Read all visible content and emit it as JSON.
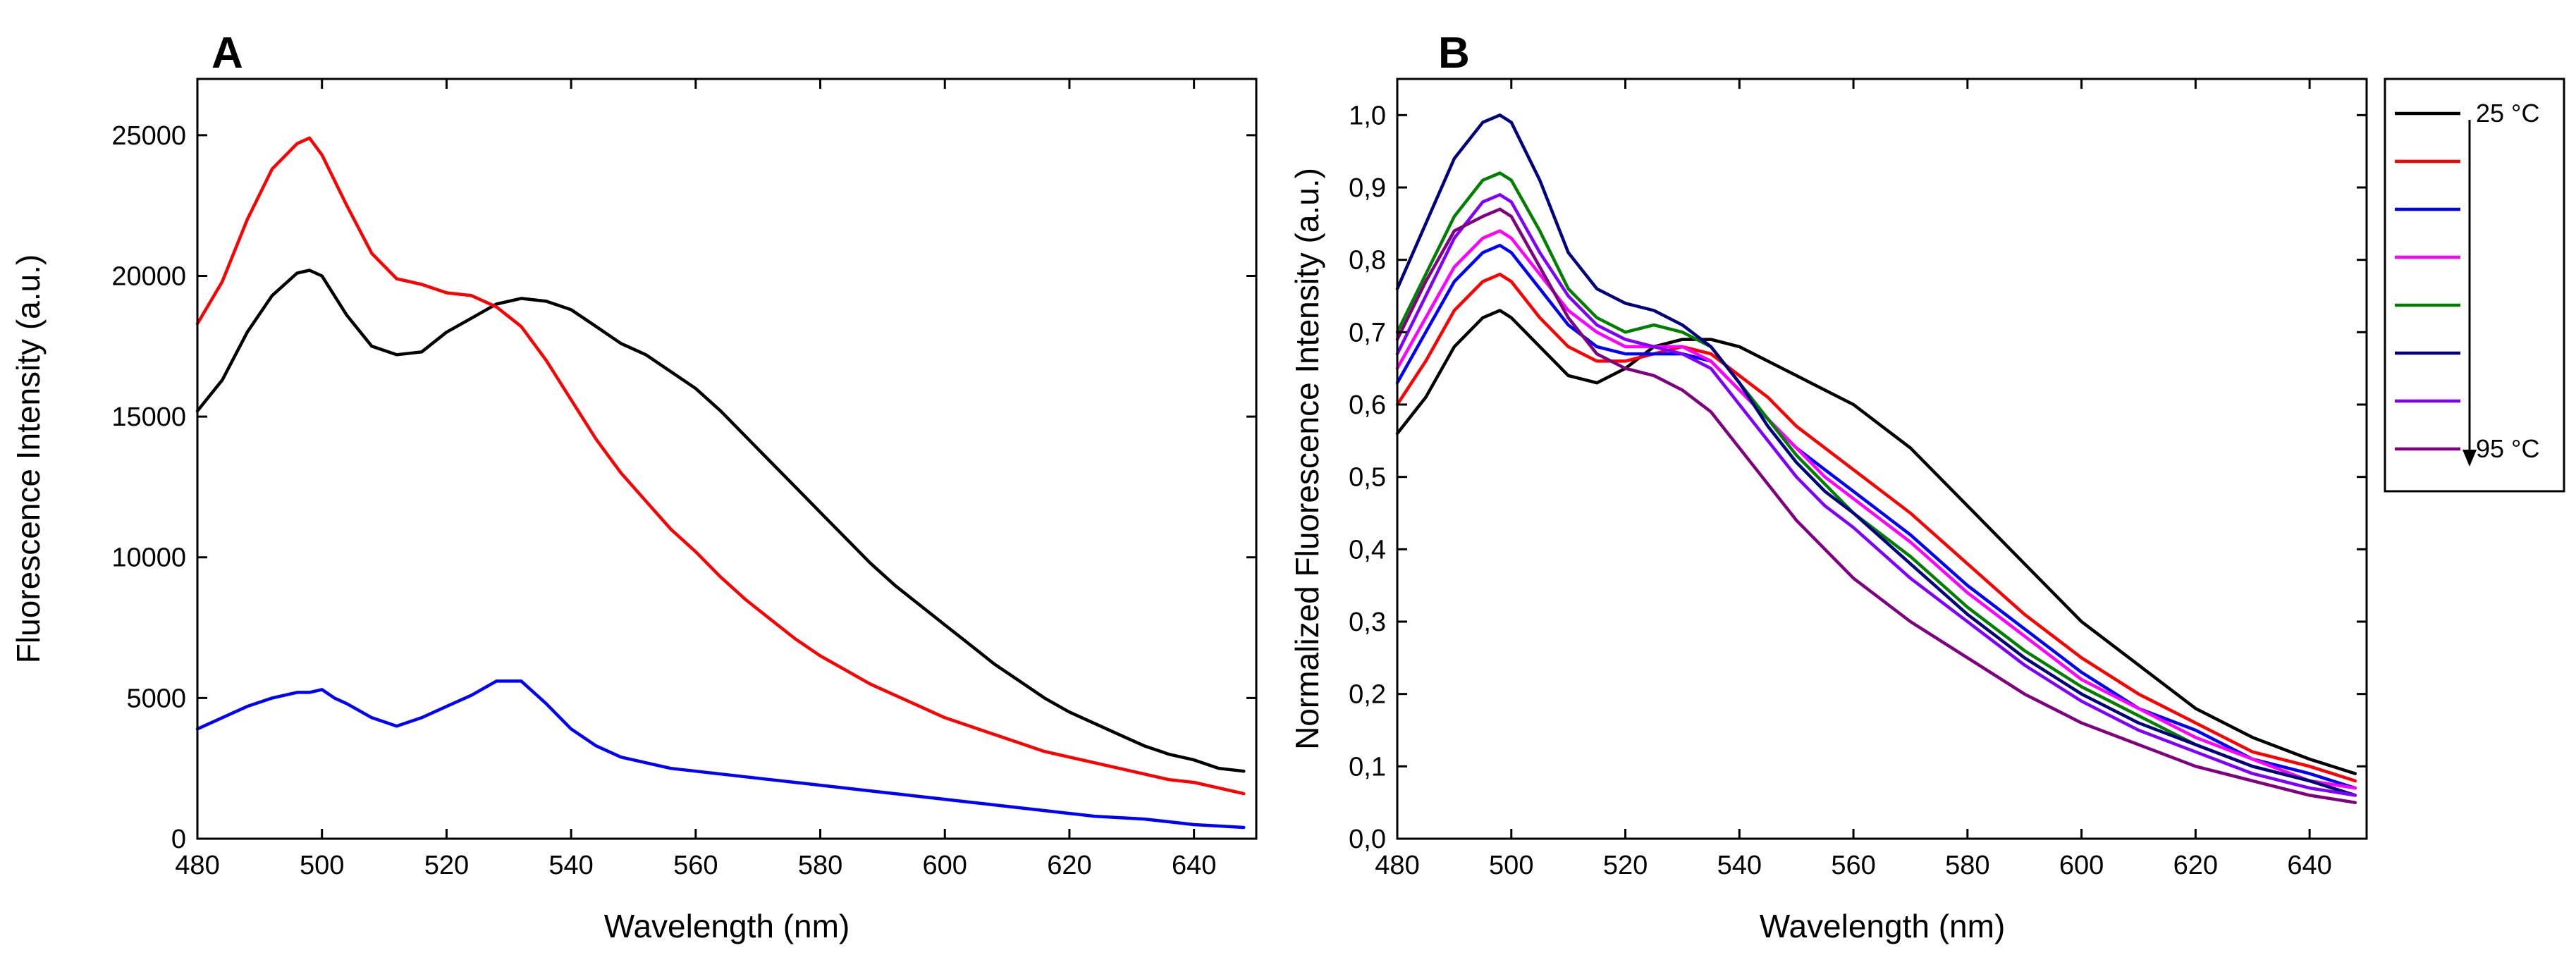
{
  "colors": {
    "black": "#000000",
    "red": "#ff0000",
    "blue": "#0000ff",
    "magenta": "#ff00ff",
    "green": "#008000",
    "navy": "#000080",
    "violet": "#8000ff",
    "purple": "#800080"
  },
  "chart_data": [
    {
      "panel": "A",
      "type": "line",
      "title": "",
      "xlabel": "Wavelength (nm)",
      "ylabel": "Fluorescence Intensity (a.u.)",
      "xlim": [
        480,
        650
      ],
      "ylim": [
        0,
        27000
      ],
      "xticks": [
        480,
        500,
        520,
        540,
        560,
        580,
        600,
        620,
        640
      ],
      "xtick_labels": [
        "480",
        "500",
        "520",
        "540",
        "560",
        "580",
        "600",
        "620",
        "640"
      ],
      "yticks": [
        0,
        5000,
        10000,
        15000,
        20000,
        25000
      ],
      "ytick_labels": [
        "0",
        "5000",
        "10000",
        "15000",
        "20000",
        "25000"
      ],
      "series": [
        {
          "name": "black",
          "color": "black",
          "x": [
            480,
            484,
            488,
            492,
            496,
            498,
            500,
            504,
            508,
            512,
            516,
            520,
            524,
            528,
            532,
            536,
            540,
            544,
            548,
            552,
            556,
            560,
            564,
            568,
            572,
            576,
            580,
            584,
            588,
            592,
            596,
            600,
            604,
            608,
            612,
            616,
            620,
            624,
            628,
            632,
            636,
            640,
            644,
            648
          ],
          "y": [
            15200,
            16300,
            18000,
            19300,
            20100,
            20200,
            20000,
            18600,
            17500,
            17200,
            17300,
            18000,
            18500,
            19000,
            19200,
            19100,
            18800,
            18200,
            17600,
            17200,
            16600,
            16000,
            15200,
            14300,
            13400,
            12500,
            11600,
            10700,
            9800,
            9000,
            8300,
            7600,
            6900,
            6200,
            5600,
            5000,
            4500,
            4100,
            3700,
            3300,
            3000,
            2800,
            2500,
            2400
          ]
        },
        {
          "name": "red",
          "color": "red",
          "x": [
            480,
            484,
            488,
            492,
            496,
            498,
            500,
            504,
            508,
            512,
            516,
            520,
            524,
            528,
            532,
            536,
            540,
            544,
            548,
            552,
            556,
            560,
            564,
            568,
            572,
            576,
            580,
            584,
            588,
            592,
            596,
            600,
            604,
            608,
            612,
            616,
            620,
            624,
            628,
            632,
            636,
            640,
            644,
            648
          ],
          "y": [
            18300,
            19800,
            22000,
            23800,
            24700,
            24900,
            24300,
            22500,
            20800,
            19900,
            19700,
            19400,
            19300,
            18900,
            18200,
            17000,
            15600,
            14200,
            13000,
            12000,
            11000,
            10200,
            9300,
            8500,
            7800,
            7100,
            6500,
            6000,
            5500,
            5100,
            4700,
            4300,
            4000,
            3700,
            3400,
            3100,
            2900,
            2700,
            2500,
            2300,
            2100,
            2000,
            1800,
            1600
          ]
        },
        {
          "name": "blue",
          "color": "blue",
          "x": [
            480,
            484,
            488,
            492,
            496,
            498,
            500,
            502,
            504,
            508,
            512,
            516,
            520,
            524,
            528,
            532,
            536,
            540,
            544,
            548,
            552,
            556,
            560,
            564,
            568,
            572,
            576,
            580,
            584,
            588,
            592,
            596,
            600,
            604,
            608,
            612,
            616,
            620,
            624,
            628,
            632,
            636,
            640,
            644,
            648
          ],
          "y": [
            3900,
            4300,
            4700,
            5000,
            5200,
            5200,
            5300,
            5000,
            4800,
            4300,
            4000,
            4300,
            4700,
            5100,
            5600,
            5600,
            4800,
            3900,
            3300,
            2900,
            2700,
            2500,
            2400,
            2300,
            2200,
            2100,
            2000,
            1900,
            1800,
            1700,
            1600,
            1500,
            1400,
            1300,
            1200,
            1100,
            1000,
            900,
            800,
            750,
            700,
            600,
            500,
            450,
            400
          ]
        }
      ]
    },
    {
      "panel": "B",
      "type": "line",
      "title": "",
      "xlabel": "Wavelength (nm)",
      "ylabel": "Normalized Fluorescence Intensity (a.u.)",
      "xlim": [
        480,
        650
      ],
      "ylim": [
        0.0,
        1.05
      ],
      "xticks": [
        480,
        500,
        520,
        540,
        560,
        580,
        600,
        620,
        640
      ],
      "xtick_labels": [
        "480",
        "500",
        "520",
        "540",
        "560",
        "580",
        "600",
        "620",
        "640"
      ],
      "yticks": [
        0.0,
        0.1,
        0.2,
        0.3,
        0.4,
        0.5,
        0.6,
        0.7,
        0.8,
        0.9,
        1.0
      ],
      "ytick_labels": [
        "0,0",
        "0,1",
        "0,2",
        "0,3",
        "0,4",
        "0,5",
        "0,6",
        "0,7",
        "0,8",
        "0,9",
        "1,0"
      ],
      "x": [
        480,
        485,
        490,
        495,
        498,
        500,
        505,
        510,
        515,
        520,
        525,
        530,
        535,
        540,
        545,
        550,
        555,
        560,
        570,
        580,
        590,
        600,
        610,
        620,
        630,
        640,
        648
      ],
      "series": [
        {
          "name": "25 °C",
          "color": "black",
          "values": [
            0.56,
            0.61,
            0.68,
            0.72,
            0.73,
            0.72,
            0.68,
            0.64,
            0.63,
            0.65,
            0.68,
            0.69,
            0.69,
            0.68,
            0.66,
            0.64,
            0.62,
            0.6,
            0.54,
            0.46,
            0.38,
            0.3,
            0.24,
            0.18,
            0.14,
            0.11,
            0.09
          ]
        },
        {
          "name": "",
          "color": "red",
          "values": [
            0.6,
            0.66,
            0.73,
            0.77,
            0.78,
            0.77,
            0.72,
            0.68,
            0.66,
            0.66,
            0.67,
            0.68,
            0.67,
            0.64,
            0.61,
            0.57,
            0.54,
            0.51,
            0.45,
            0.38,
            0.31,
            0.25,
            0.2,
            0.16,
            0.12,
            0.1,
            0.08
          ]
        },
        {
          "name": "",
          "color": "blue",
          "values": [
            0.63,
            0.7,
            0.77,
            0.81,
            0.82,
            0.81,
            0.76,
            0.71,
            0.68,
            0.67,
            0.67,
            0.67,
            0.66,
            0.62,
            0.58,
            0.54,
            0.51,
            0.48,
            0.42,
            0.35,
            0.29,
            0.23,
            0.18,
            0.15,
            0.11,
            0.09,
            0.07
          ]
        },
        {
          "name": "",
          "color": "magenta",
          "values": [
            0.65,
            0.72,
            0.79,
            0.83,
            0.84,
            0.83,
            0.78,
            0.73,
            0.7,
            0.68,
            0.68,
            0.68,
            0.66,
            0.62,
            0.58,
            0.54,
            0.5,
            0.47,
            0.41,
            0.34,
            0.28,
            0.22,
            0.18,
            0.14,
            0.11,
            0.08,
            0.07
          ]
        },
        {
          "name": "",
          "color": "green",
          "values": [
            0.7,
            0.78,
            0.86,
            0.91,
            0.92,
            0.91,
            0.84,
            0.76,
            0.72,
            0.7,
            0.71,
            0.7,
            0.68,
            0.63,
            0.58,
            0.53,
            0.49,
            0.45,
            0.39,
            0.32,
            0.26,
            0.21,
            0.17,
            0.13,
            0.1,
            0.08,
            0.06
          ]
        },
        {
          "name": "",
          "color": "navy",
          "values": [
            0.76,
            0.85,
            0.94,
            0.99,
            1.0,
            0.99,
            0.91,
            0.81,
            0.76,
            0.74,
            0.73,
            0.71,
            0.68,
            0.63,
            0.57,
            0.52,
            0.48,
            0.45,
            0.38,
            0.31,
            0.25,
            0.2,
            0.16,
            0.13,
            0.1,
            0.08,
            0.06
          ]
        },
        {
          "name": "",
          "color": "violet",
          "values": [
            0.67,
            0.75,
            0.83,
            0.88,
            0.89,
            0.88,
            0.81,
            0.75,
            0.71,
            0.69,
            0.68,
            0.67,
            0.65,
            0.6,
            0.55,
            0.5,
            0.46,
            0.43,
            0.36,
            0.3,
            0.24,
            0.19,
            0.15,
            0.12,
            0.09,
            0.07,
            0.06
          ]
        },
        {
          "name": "95 °C",
          "color": "purple",
          "values": [
            0.69,
            0.77,
            0.84,
            0.86,
            0.87,
            0.86,
            0.79,
            0.72,
            0.67,
            0.65,
            0.64,
            0.62,
            0.59,
            0.54,
            0.49,
            0.44,
            0.4,
            0.36,
            0.3,
            0.25,
            0.2,
            0.16,
            0.13,
            0.1,
            0.08,
            0.06,
            0.05
          ]
        }
      ]
    }
  ],
  "panels": {
    "a": {
      "label": "A",
      "xlabel": "Wavelength (nm)",
      "ylabel": "Fluorescence Intensity (a.u.)"
    },
    "b": {
      "label": "B",
      "xlabel": "Wavelength (nm)",
      "ylabel": "Normalized Fluorescence Intensity (a.u.)"
    }
  },
  "legend": {
    "entries": [
      {
        "label": "25 °C",
        "color": "black"
      },
      {
        "label": "",
        "color": "red"
      },
      {
        "label": "",
        "color": "blue"
      },
      {
        "label": "",
        "color": "magenta"
      },
      {
        "label": "",
        "color": "green"
      },
      {
        "label": "",
        "color": "navy"
      },
      {
        "label": "",
        "color": "violet"
      },
      {
        "label": "95 °C",
        "color": "purple"
      }
    ],
    "top_label": "25 °C",
    "bottom_label": "95 °C"
  }
}
